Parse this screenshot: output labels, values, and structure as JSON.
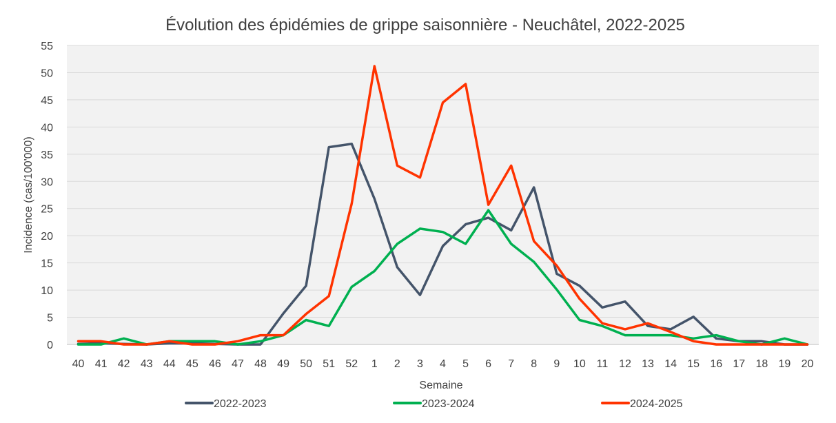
{
  "chart_data": {
    "type": "line",
    "title": "Évolution des épidémies de grippe saisonnière - Neuchâtel, 2022-2025",
    "xlabel": "Semaine",
    "ylabel": "Incidence (cas/100'000)",
    "ylim": [
      0,
      55
    ],
    "yticks": [
      0,
      5,
      10,
      15,
      20,
      25,
      30,
      35,
      40,
      45,
      50,
      55
    ],
    "grid": true,
    "legend_position": "bottom",
    "categories": [
      "40",
      "41",
      "42",
      "43",
      "44",
      "45",
      "46",
      "47",
      "48",
      "49",
      "50",
      "51",
      "52",
      "1",
      "2",
      "3",
      "4",
      "5",
      "6",
      "7",
      "8",
      "9",
      "10",
      "11",
      "12",
      "13",
      "14",
      "15",
      "16",
      "17",
      "18",
      "19",
      "20"
    ],
    "series": [
      {
        "name": "2022-2023",
        "color": "#44546A",
        "values": [
          0.1,
          0.2,
          0.1,
          0.0,
          0.2,
          0.2,
          0.1,
          0.0,
          0.0,
          5.7,
          10.8,
          36.3,
          36.9,
          26.8,
          14.2,
          9.1,
          18.1,
          22.1,
          23.3,
          21.0,
          28.9,
          13.0,
          10.8,
          6.8,
          7.9,
          3.4,
          2.8,
          5.1,
          1.1,
          0.6,
          0.6,
          0.0,
          0.0
        ]
      },
      {
        "name": "2023-2024",
        "color": "#00B050",
        "values": [
          0.0,
          0.0,
          1.1,
          0.0,
          0.6,
          0.6,
          0.6,
          0.0,
          0.6,
          1.7,
          4.5,
          3.4,
          10.6,
          13.5,
          18.5,
          21.3,
          20.7,
          18.5,
          24.7,
          18.5,
          15.2,
          10.1,
          4.5,
          3.4,
          1.7,
          1.7,
          1.7,
          1.1,
          1.7,
          0.6,
          0.0,
          1.1,
          0.0
        ]
      },
      {
        "name": "2024-2025",
        "color": "#FF3300",
        "values": [
          0.6,
          0.6,
          0.0,
          0.0,
          0.6,
          0.0,
          0.0,
          0.6,
          1.7,
          1.7,
          5.6,
          8.9,
          25.9,
          51.2,
          32.9,
          30.7,
          44.5,
          47.9,
          25.7,
          32.9,
          19.0,
          14.5,
          8.4,
          3.9,
          2.8,
          3.9,
          2.3,
          0.6,
          0.0,
          0.0,
          0.0,
          0.0,
          0.0
        ]
      }
    ]
  }
}
